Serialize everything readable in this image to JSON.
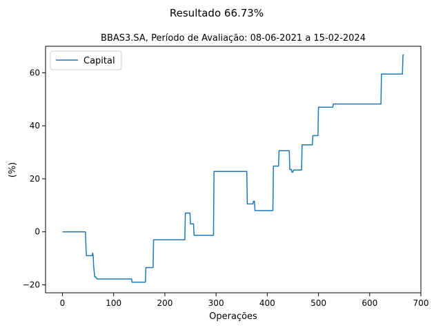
{
  "chart_data": {
    "type": "line",
    "suptitle": "Resultado 66.73%",
    "title": "BBAS3.SA, Período de Avaliação: 08-06-2021 a 15-02-2024",
    "xlabel": "Operações",
    "ylabel": "(%)",
    "xlim": [
      -33,
      700
    ],
    "ylim": [
      -23,
      70
    ],
    "xticks": [
      0,
      100,
      200,
      300,
      400,
      500,
      600,
      700
    ],
    "yticks": [
      -20,
      0,
      20,
      40,
      60
    ],
    "grid": false,
    "legend": "top-left",
    "series": [
      {
        "name": "Capital",
        "color": "#1f77b4",
        "x": [
          0,
          45,
          46,
          47,
          58,
          59,
          60,
          61,
          62,
          63,
          64,
          65,
          66,
          67,
          68,
          135,
          136,
          162,
          163,
          177,
          178,
          239,
          240,
          249,
          250,
          251,
          252,
          256,
          257,
          295,
          296,
          360,
          361,
          372,
          373,
          375,
          376,
          411,
          412,
          422,
          423,
          443,
          444,
          447,
          448,
          450,
          451,
          467,
          468,
          488,
          489,
          499,
          500,
          528,
          529,
          622,
          623,
          664,
          665,
          667
        ],
        "y": [
          0,
          0,
          -6,
          -9,
          -9,
          -8,
          -9,
          -13,
          -15,
          -17,
          -17,
          -17,
          -17.5,
          -17.5,
          -17.8,
          -17.8,
          -19,
          -19,
          -13.5,
          -13.5,
          -3,
          -3,
          7.1,
          7.1,
          3,
          3,
          3,
          3,
          -1.3,
          -1.3,
          22.8,
          22.8,
          10.5,
          10.5,
          11.5,
          11.5,
          8,
          8,
          24.8,
          24.8,
          30.6,
          30.6,
          23.5,
          23.5,
          22.5,
          22.5,
          23.3,
          23.3,
          32.8,
          32.8,
          36.3,
          36.3,
          47,
          47,
          48.2,
          48.2,
          59.5,
          59.5,
          66.7,
          66.7
        ]
      }
    ]
  }
}
